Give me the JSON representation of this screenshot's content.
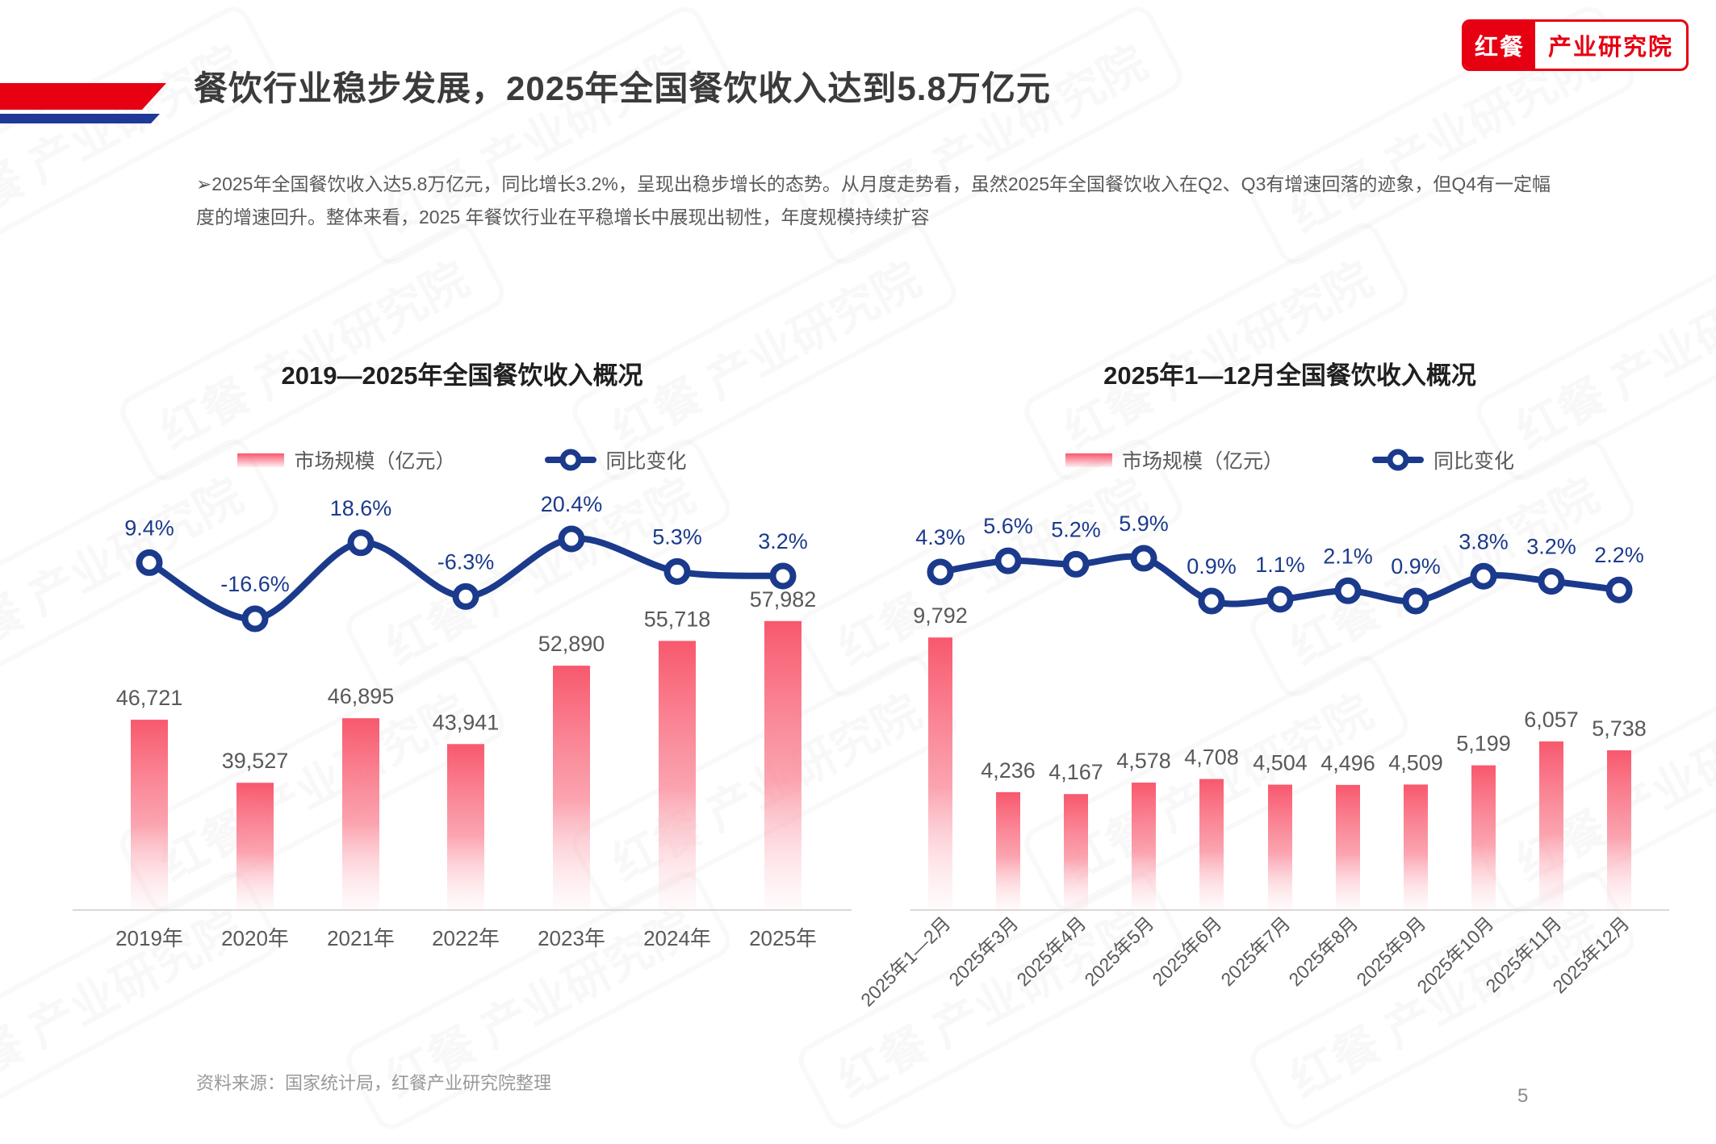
{
  "page": {
    "logo": {
      "left": "红餐",
      "right": "产业研究院"
    },
    "title": "餐饮行业稳步发展，2025年全国餐饮收入达到5.8万亿元",
    "paragraph": "➢2025年全国餐饮收入达5.8万亿元，同比增长3.2%，呈现出稳步增长的态势。从月度走势看，虽然2025年全国餐饮收入在Q2、Q3有增速回落的迹象，但Q4有一定幅度的增速回升。整体来看，2025 年餐饮行业在平稳增长中展现出韧性，年度规模持续扩容",
    "source": "资料来源：国家统计局，红餐产业研究院整理",
    "page_number": "5",
    "watermark": "红餐 产业研究院"
  },
  "colors": {
    "brand_red": "#E60012",
    "deco_blue": "#1E3A96",
    "line_navy": "#1B3A8C",
    "bar_pink": "#F8586D",
    "text_dark": "#3B3B3B",
    "text_gray": "#595959",
    "text_light": "#999999",
    "axis_gray": "#D9D9D9"
  },
  "chart_data": [
    {
      "type": "bar",
      "subtype": "bar+line combo",
      "title": "2019—2025年全国餐饮收入概况",
      "categories": [
        "2019年",
        "2020年",
        "2021年",
        "2022年",
        "2023年",
        "2024年",
        "2025年"
      ],
      "series": [
        {
          "name": "市场规模（亿元）",
          "type": "bar",
          "values": [
            46721,
            39527,
            46895,
            43941,
            52890,
            55718,
            57982
          ],
          "labels": [
            "46,721",
            "39,527",
            "46,895",
            "43,941",
            "52,890",
            "55,718",
            "57,982"
          ]
        },
        {
          "name": "同比变化",
          "type": "line",
          "values": [
            9.4,
            -16.6,
            18.6,
            -6.3,
            20.4,
            5.3,
            3.2
          ],
          "labels": [
            "9.4%",
            "-16.6%",
            "18.6%",
            "-6.3%",
            "20.4%",
            "5.3%",
            "3.2%"
          ]
        }
      ],
      "legend_position": "top",
      "value_axis_visible": false,
      "grid": false
    },
    {
      "type": "bar",
      "subtype": "bar+line combo",
      "title": "2025年1—12月全国餐饮收入概况",
      "categories": [
        "2025年1—2月",
        "2025年3月",
        "2025年4月",
        "2025年5月",
        "2025年6月",
        "2025年7月",
        "2025年8月",
        "2025年9月",
        "2025年10月",
        "2025年11月",
        "2025年12月"
      ],
      "series": [
        {
          "name": "市场规模（亿元）",
          "type": "bar",
          "values": [
            9792,
            4236,
            4167,
            4578,
            4708,
            4504,
            4496,
            4509,
            5199,
            6057,
            5738
          ],
          "labels": [
            "9,792",
            "4,236",
            "4,167",
            "4,578",
            "4,708",
            "4,504",
            "4,496",
            "4,509",
            "5,199",
            "6,057",
            "5,738"
          ]
        },
        {
          "name": "同比变化",
          "type": "line",
          "values": [
            4.3,
            5.6,
            5.2,
            5.9,
            0.9,
            1.1,
            2.1,
            0.9,
            3.8,
            3.2,
            2.2
          ],
          "labels": [
            "4.3%",
            "5.6%",
            "5.2%",
            "5.9%",
            "0.9%",
            "1.1%",
            "2.1%",
            "0.9%",
            "3.8%",
            "3.2%",
            "2.2%"
          ]
        }
      ],
      "legend_position": "top",
      "value_axis_visible": false,
      "grid": false
    }
  ]
}
